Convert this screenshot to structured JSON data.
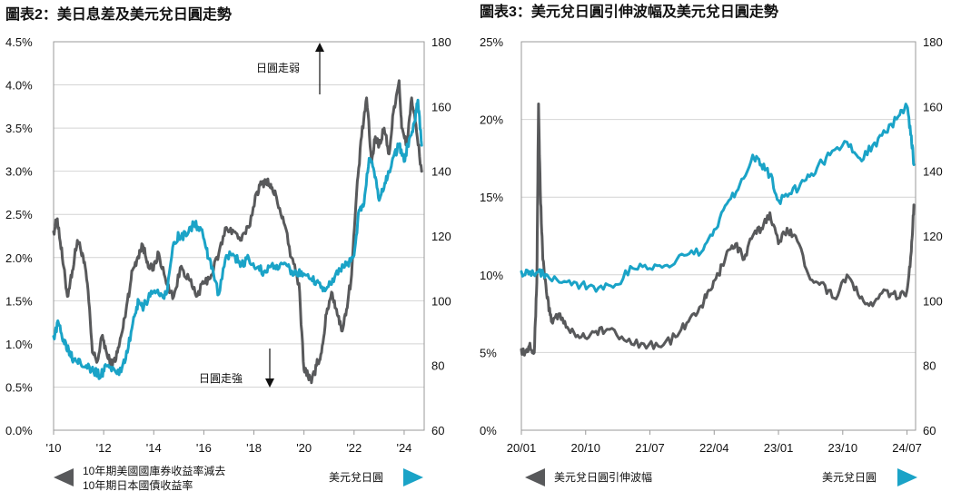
{
  "chart_data": [
    {
      "type": "line",
      "title": "圖表2：美日息差及美元兌日圓走勢",
      "x_tick_labels": [
        "'10",
        "'12",
        "'14",
        "'16",
        "'18",
        "'20",
        "'22",
        "'24"
      ],
      "y_left_tick_labels": [
        "0.0%",
        "0.5%",
        "1.0%",
        "1.5%",
        "2.0%",
        "2.5%",
        "3.0%",
        "3.5%",
        "4.0%",
        "4.5%"
      ],
      "y_right_tick_labels": [
        "60",
        "80",
        "100",
        "120",
        "140",
        "160",
        "180"
      ],
      "x_range": [
        2010,
        2024.8
      ],
      "y_left_range": [
        0,
        4.5
      ],
      "y_right_range": [
        60,
        180
      ],
      "annotations": {
        "weak": "日圓走弱",
        "strong": "日圓走強"
      },
      "legend_left_line1": "10年期美國國庫券收益率減去",
      "legend_left_line2": "10年期日本國債收益率",
      "legend_right": "美元兌日圓",
      "series": [
        {
          "name": "10年期美國國庫券收益率減去10年期日本國債收益率",
          "axis": "left",
          "color": "#58595b",
          "x": [
            2010.0,
            2010.15,
            2010.35,
            2010.55,
            2010.75,
            2010.95,
            2011.15,
            2011.35,
            2011.55,
            2011.75,
            2011.95,
            2012.15,
            2012.35,
            2012.55,
            2012.75,
            2012.95,
            2013.15,
            2013.35,
            2013.55,
            2013.75,
            2013.95,
            2014.2,
            2014.5,
            2014.8,
            2015.1,
            2015.4,
            2015.7,
            2016.0,
            2016.3,
            2016.6,
            2016.9,
            2017.2,
            2017.5,
            2017.8,
            2018.1,
            2018.3,
            2018.5,
            2018.7,
            2018.9,
            2019.2,
            2019.5,
            2019.8,
            2020.0,
            2020.15,
            2020.3,
            2020.5,
            2020.7,
            2020.9,
            2021.1,
            2021.3,
            2021.5,
            2021.7,
            2021.9,
            2022.1,
            2022.3,
            2022.5,
            2022.7,
            2022.85,
            2023.0,
            2023.2,
            2023.4,
            2023.6,
            2023.8,
            2023.9,
            2024.1,
            2024.3,
            2024.5,
            2024.7
          ],
          "y": [
            2.3,
            2.45,
            2.0,
            1.55,
            1.85,
            2.2,
            2.05,
            1.7,
            0.9,
            0.8,
            1.1,
            0.85,
            0.75,
            0.9,
            1.15,
            1.5,
            1.85,
            2.0,
            2.15,
            1.95,
            1.85,
            2.05,
            1.7,
            1.55,
            1.9,
            1.75,
            1.55,
            1.7,
            1.8,
            2.05,
            2.35,
            2.3,
            2.2,
            2.35,
            2.75,
            2.85,
            2.9,
            2.8,
            2.7,
            2.4,
            2.0,
            1.7,
            0.7,
            0.65,
            0.55,
            0.75,
            0.9,
            1.35,
            1.6,
            1.4,
            1.15,
            1.4,
            1.8,
            2.75,
            3.4,
            3.85,
            3.1,
            3.4,
            3.3,
            3.5,
            3.2,
            3.75,
            4.05,
            3.5,
            3.3,
            3.85,
            3.45,
            3.0
          ]
        },
        {
          "name": "美元兌日圓",
          "axis": "right",
          "color": "#1aa3c7",
          "x": [
            2010.0,
            2010.2,
            2010.4,
            2010.6,
            2010.8,
            2011.0,
            2011.3,
            2011.6,
            2011.9,
            2012.1,
            2012.4,
            2012.7,
            2012.95,
            2013.2,
            2013.4,
            2013.6,
            2013.9,
            2014.2,
            2014.5,
            2014.8,
            2015.0,
            2015.3,
            2015.6,
            2015.9,
            2016.1,
            2016.3,
            2016.6,
            2016.9,
            2017.2,
            2017.5,
            2017.8,
            2018.1,
            2018.4,
            2018.7,
            2019.0,
            2019.3,
            2019.6,
            2019.9,
            2020.2,
            2020.5,
            2020.8,
            2021.1,
            2021.4,
            2021.7,
            2022.0,
            2022.2,
            2022.4,
            2022.6,
            2022.8,
            2023.0,
            2023.2,
            2023.4,
            2023.6,
            2023.8,
            2024.0,
            2024.2,
            2024.4,
            2024.55,
            2024.7
          ],
          "y": [
            89,
            93,
            88,
            85,
            82,
            82,
            80,
            78,
            77,
            80,
            79,
            78,
            84,
            95,
            100,
            98,
            103,
            102,
            102,
            118,
            120,
            120,
            124,
            122,
            116,
            110,
            102,
            114,
            114,
            111,
            113,
            110,
            109,
            111,
            110,
            111,
            108,
            109,
            107,
            106,
            104,
            105,
            110,
            111,
            114,
            128,
            130,
            144,
            140,
            131,
            135,
            140,
            145,
            148,
            143,
            150,
            155,
            162,
            148
          ]
        }
      ]
    },
    {
      "type": "line",
      "title": "圖表3：美元兌日圓引伸波幅及美元兌日圓走勢",
      "x_tick_labels": [
        "20/01",
        "20/10",
        "21/07",
        "22/04",
        "23/01",
        "23/10",
        "24/07"
      ],
      "y_left_tick_labels": [
        "0%",
        "5%",
        "10%",
        "15%",
        "20%",
        "25%"
      ],
      "y_right_tick_labels": [
        "60",
        "80",
        "100",
        "120",
        "140",
        "160",
        "180"
      ],
      "x_range": [
        2020.0,
        2024.6
      ],
      "y_left_range": [
        0,
        25
      ],
      "y_right_range": [
        60,
        180
      ],
      "legend_left": "美元兌日圓引伸波幅",
      "legend_right": "美元兌日圓",
      "series": [
        {
          "name": "美元兌日圓引伸波幅",
          "axis": "left",
          "color": "#58595b",
          "x": [
            2020.0,
            2020.05,
            2020.1,
            2020.15,
            2020.18,
            2020.2,
            2020.22,
            2020.25,
            2020.3,
            2020.35,
            2020.45,
            2020.55,
            2020.7,
            2020.85,
            2021.0,
            2021.2,
            2021.4,
            2021.6,
            2021.8,
            2021.95,
            2022.1,
            2022.2,
            2022.3,
            2022.4,
            2022.5,
            2022.6,
            2022.7,
            2022.8,
            2022.9,
            2023.0,
            2023.1,
            2023.2,
            2023.35,
            2023.5,
            2023.65,
            2023.8,
            2023.95,
            2024.1,
            2024.25,
            2024.4,
            2024.5,
            2024.55,
            2024.58
          ],
          "y": [
            5.2,
            5.0,
            5.6,
            5.0,
            9.5,
            21.0,
            15.5,
            11.0,
            8.5,
            7.0,
            7.5,
            6.5,
            6.0,
            6.3,
            6.5,
            5.8,
            5.6,
            5.4,
            6.0,
            7.0,
            8.0,
            9.0,
            10.0,
            11.5,
            12.0,
            11.0,
            12.5,
            13.0,
            14.0,
            12.0,
            13.0,
            12.5,
            10.0,
            9.5,
            8.5,
            10.0,
            8.5,
            8.0,
            9.0,
            8.5,
            9.0,
            11.5,
            14.5
          ]
        },
        {
          "name": "美元兌日圓",
          "axis": "right",
          "color": "#1aa3c7",
          "x": [
            2020.0,
            2020.1,
            2020.2,
            2020.3,
            2020.5,
            2020.7,
            2020.9,
            2021.1,
            2021.3,
            2021.5,
            2021.7,
            2021.9,
            2022.1,
            2022.25,
            2022.4,
            2022.55,
            2022.7,
            2022.8,
            2022.9,
            2023.0,
            2023.15,
            2023.3,
            2023.45,
            2023.6,
            2023.8,
            2023.95,
            2024.1,
            2024.25,
            2024.4,
            2024.5,
            2024.55,
            2024.58
          ],
          "y": [
            109,
            109,
            109,
            108,
            106,
            105,
            104,
            105,
            110,
            110,
            111,
            114,
            115,
            122,
            130,
            136,
            145,
            142,
            139,
            131,
            133,
            137,
            141,
            145,
            149,
            144,
            148,
            152,
            157,
            160,
            151,
            142
          ]
        }
      ]
    }
  ]
}
